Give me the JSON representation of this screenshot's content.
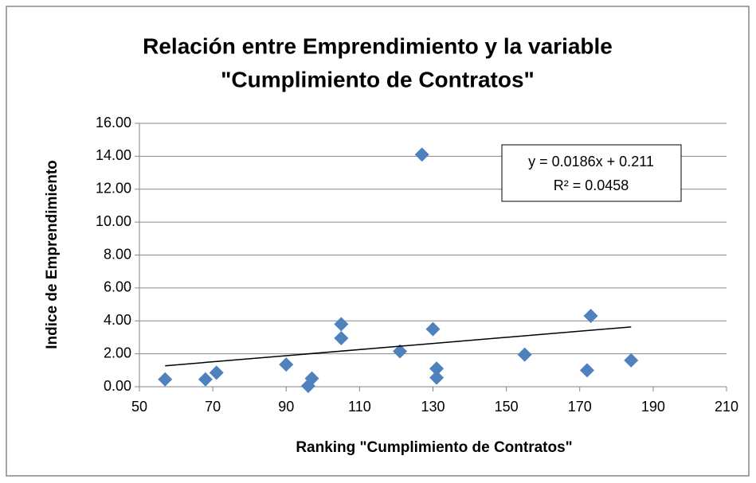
{
  "chart_data": {
    "type": "scatter",
    "title": [
      "Relación entre Emprendimiento y la variable",
      "\"Cumplimiento de Contratos\""
    ],
    "x_label": "Ranking \"Cumplimiento de Contratos\"",
    "y_label": "Indice de Emprendimiento",
    "color": "#4f81bd",
    "x": [
      57,
      68,
      71,
      90,
      96,
      97,
      105,
      105,
      121,
      127,
      130,
      131,
      131,
      155,
      172,
      173,
      184
    ],
    "values": [
      0.45,
      0.45,
      0.85,
      1.35,
      0.05,
      0.5,
      3.8,
      2.95,
      2.15,
      14.1,
      3.5,
      1.1,
      0.55,
      1.95,
      1.0,
      4.3,
      1.6
    ],
    "xlim": [
      50,
      210
    ],
    "xticks": [
      50,
      70,
      90,
      110,
      130,
      150,
      170,
      190,
      210
    ],
    "ylim": [
      0,
      16
    ],
    "yticks": [
      {
        "value": 0,
        "label": "0.00"
      },
      {
        "value": 2,
        "label": "2.00"
      },
      {
        "value": 4,
        "label": "4.00"
      },
      {
        "value": 6,
        "label": "6.00"
      },
      {
        "value": 8,
        "label": "8.00"
      },
      {
        "value": 10,
        "label": "10.00"
      },
      {
        "value": 12,
        "label": "12.00"
      },
      {
        "value": 14,
        "label": "14.00"
      },
      {
        "value": 16,
        "label": "16.00"
      }
    ],
    "grid": true,
    "trendline": {
      "slope": 0.0186,
      "intercept": 0.211,
      "equation": "y = 0.0186x + 0.211",
      "r2": "R² = 0.0458"
    }
  }
}
